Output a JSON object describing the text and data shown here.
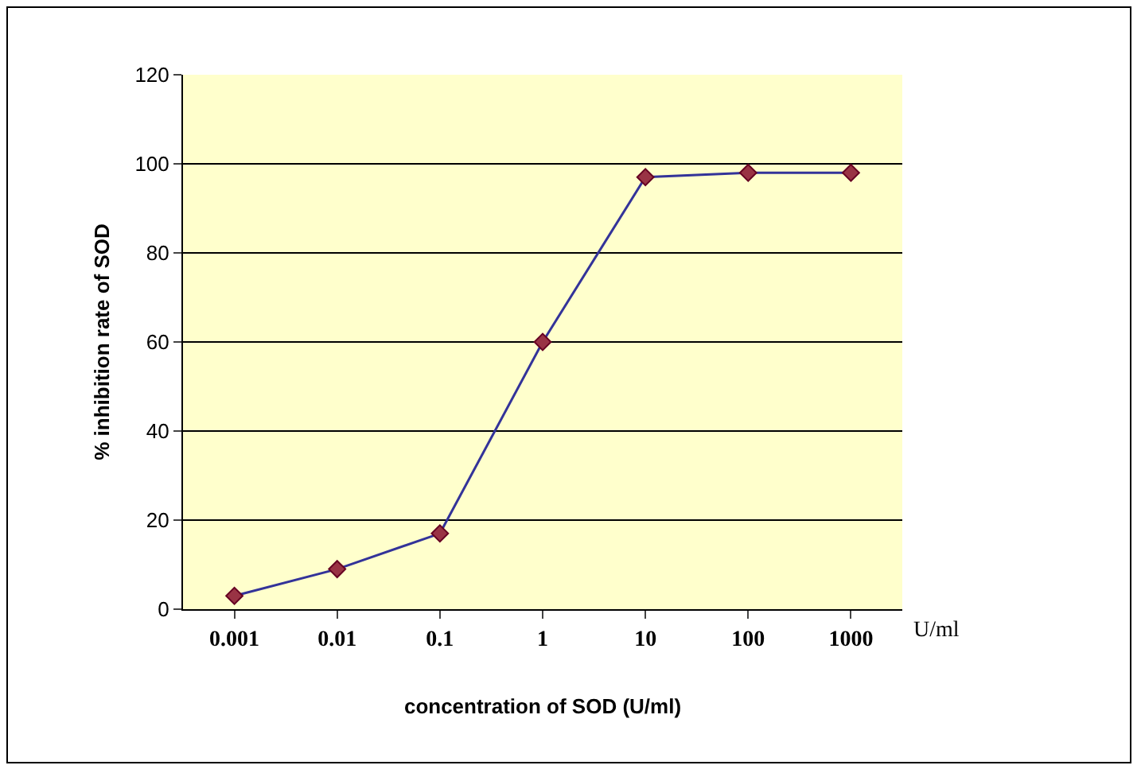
{
  "chart_data": {
    "type": "line",
    "xlabel": "concentration of SOD (U/ml)",
    "ylabel": "% inhibition rate of SOD",
    "categories": [
      "0.001",
      "0.01",
      "0.1",
      "1",
      "10",
      "100",
      "1000"
    ],
    "series": [
      {
        "color": "#333399",
        "values": [
          3,
          9,
          17,
          60,
          97,
          98,
          98
        ]
      }
    ],
    "ylim": [
      0,
      120
    ],
    "yticks": [
      0,
      20,
      40,
      60,
      80,
      100,
      120
    ],
    "grid": "y",
    "marker": "diamond",
    "line_style": "solid",
    "annotations": [
      "U/ml"
    ]
  }
}
